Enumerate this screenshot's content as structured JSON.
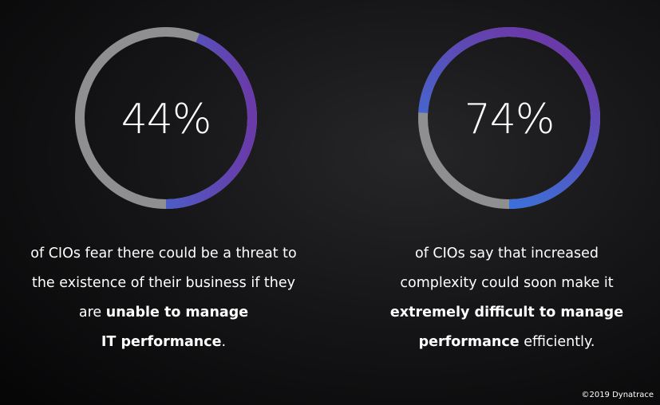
{
  "chart_data": [
    {
      "type": "pie",
      "style": "donut",
      "value": 44,
      "value_label": "44%",
      "start": "top",
      "direction": "counterclockwise",
      "remainder_color": "#8f8f91",
      "gradient": [
        "#2f7fe6",
        "#6a3aa8"
      ],
      "caption": {
        "line1": "of CIOs fear there could be a threat to",
        "line2": "the existence of their business if they",
        "line3_plain": "are ",
        "line3_bold": "unable to manage",
        "line4_bold": "IT performance",
        "line4_plain": "."
      }
    },
    {
      "type": "pie",
      "style": "donut",
      "value": 74,
      "value_label": "74%",
      "start": "top",
      "direction": "counterclockwise",
      "remainder_color": "#8f8f91",
      "gradient": [
        "#2f7fe6",
        "#6a3aa8"
      ],
      "caption": {
        "line1": "of CIOs say that increased",
        "line2": "complexity could soon make it",
        "line3_bold": "extremely difficult to manage",
        "line4_bold": "performance",
        "line4_plain": " efficiently."
      }
    }
  ],
  "footer": {
    "copyright": "©2019  Dynatrace"
  }
}
